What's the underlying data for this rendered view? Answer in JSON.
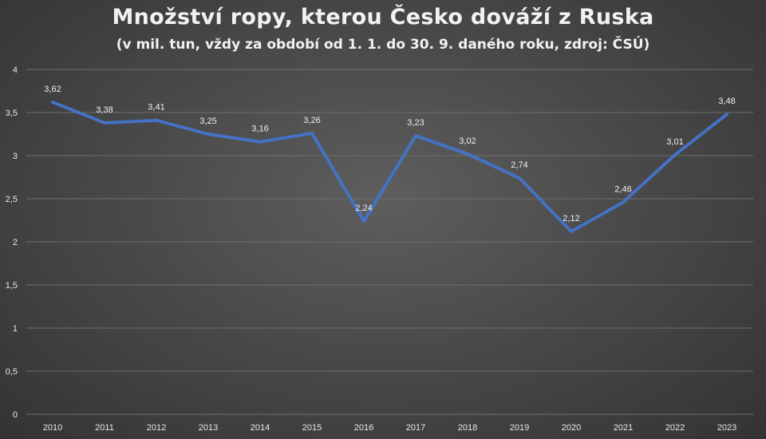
{
  "chart_data": {
    "type": "line",
    "title": "Množství ropy, kterou Česko dováží z Ruska",
    "subtitle": "(v mil. tun, vždy za období od 1. 1. do 30. 9. daného roku, zdroj: ČSÚ)",
    "categories": [
      "2010",
      "2011",
      "2012",
      "2013",
      "2014",
      "2015",
      "2016",
      "2017",
      "2018",
      "2019",
      "2020",
      "2021",
      "2022",
      "2023"
    ],
    "series": [
      {
        "values": [
          3.62,
          3.38,
          3.41,
          3.25,
          3.16,
          3.26,
          2.24,
          3.23,
          3.02,
          2.74,
          2.12,
          2.46,
          3.01,
          3.48
        ],
        "labels": [
          "3,62",
          "3,38",
          "3,41",
          "3,25",
          "3,16",
          "3,26",
          "2,24",
          "3,23",
          "3,02",
          "2,74",
          "2,12",
          "2,46",
          "3,01",
          "3,48"
        ],
        "color": "#4472c4"
      }
    ],
    "yticks": [
      0,
      0.5,
      1,
      1.5,
      2,
      2.5,
      3,
      3.5,
      4
    ],
    "ytick_labels": [
      "0",
      "0,5",
      "1",
      "1,5",
      "2",
      "2,5",
      "3",
      "3,5",
      "4"
    ],
    "ylim": [
      0,
      4
    ],
    "grid": true,
    "colors": {
      "gridline": "#6e6e6e",
      "text": "#f2f2f2"
    }
  }
}
